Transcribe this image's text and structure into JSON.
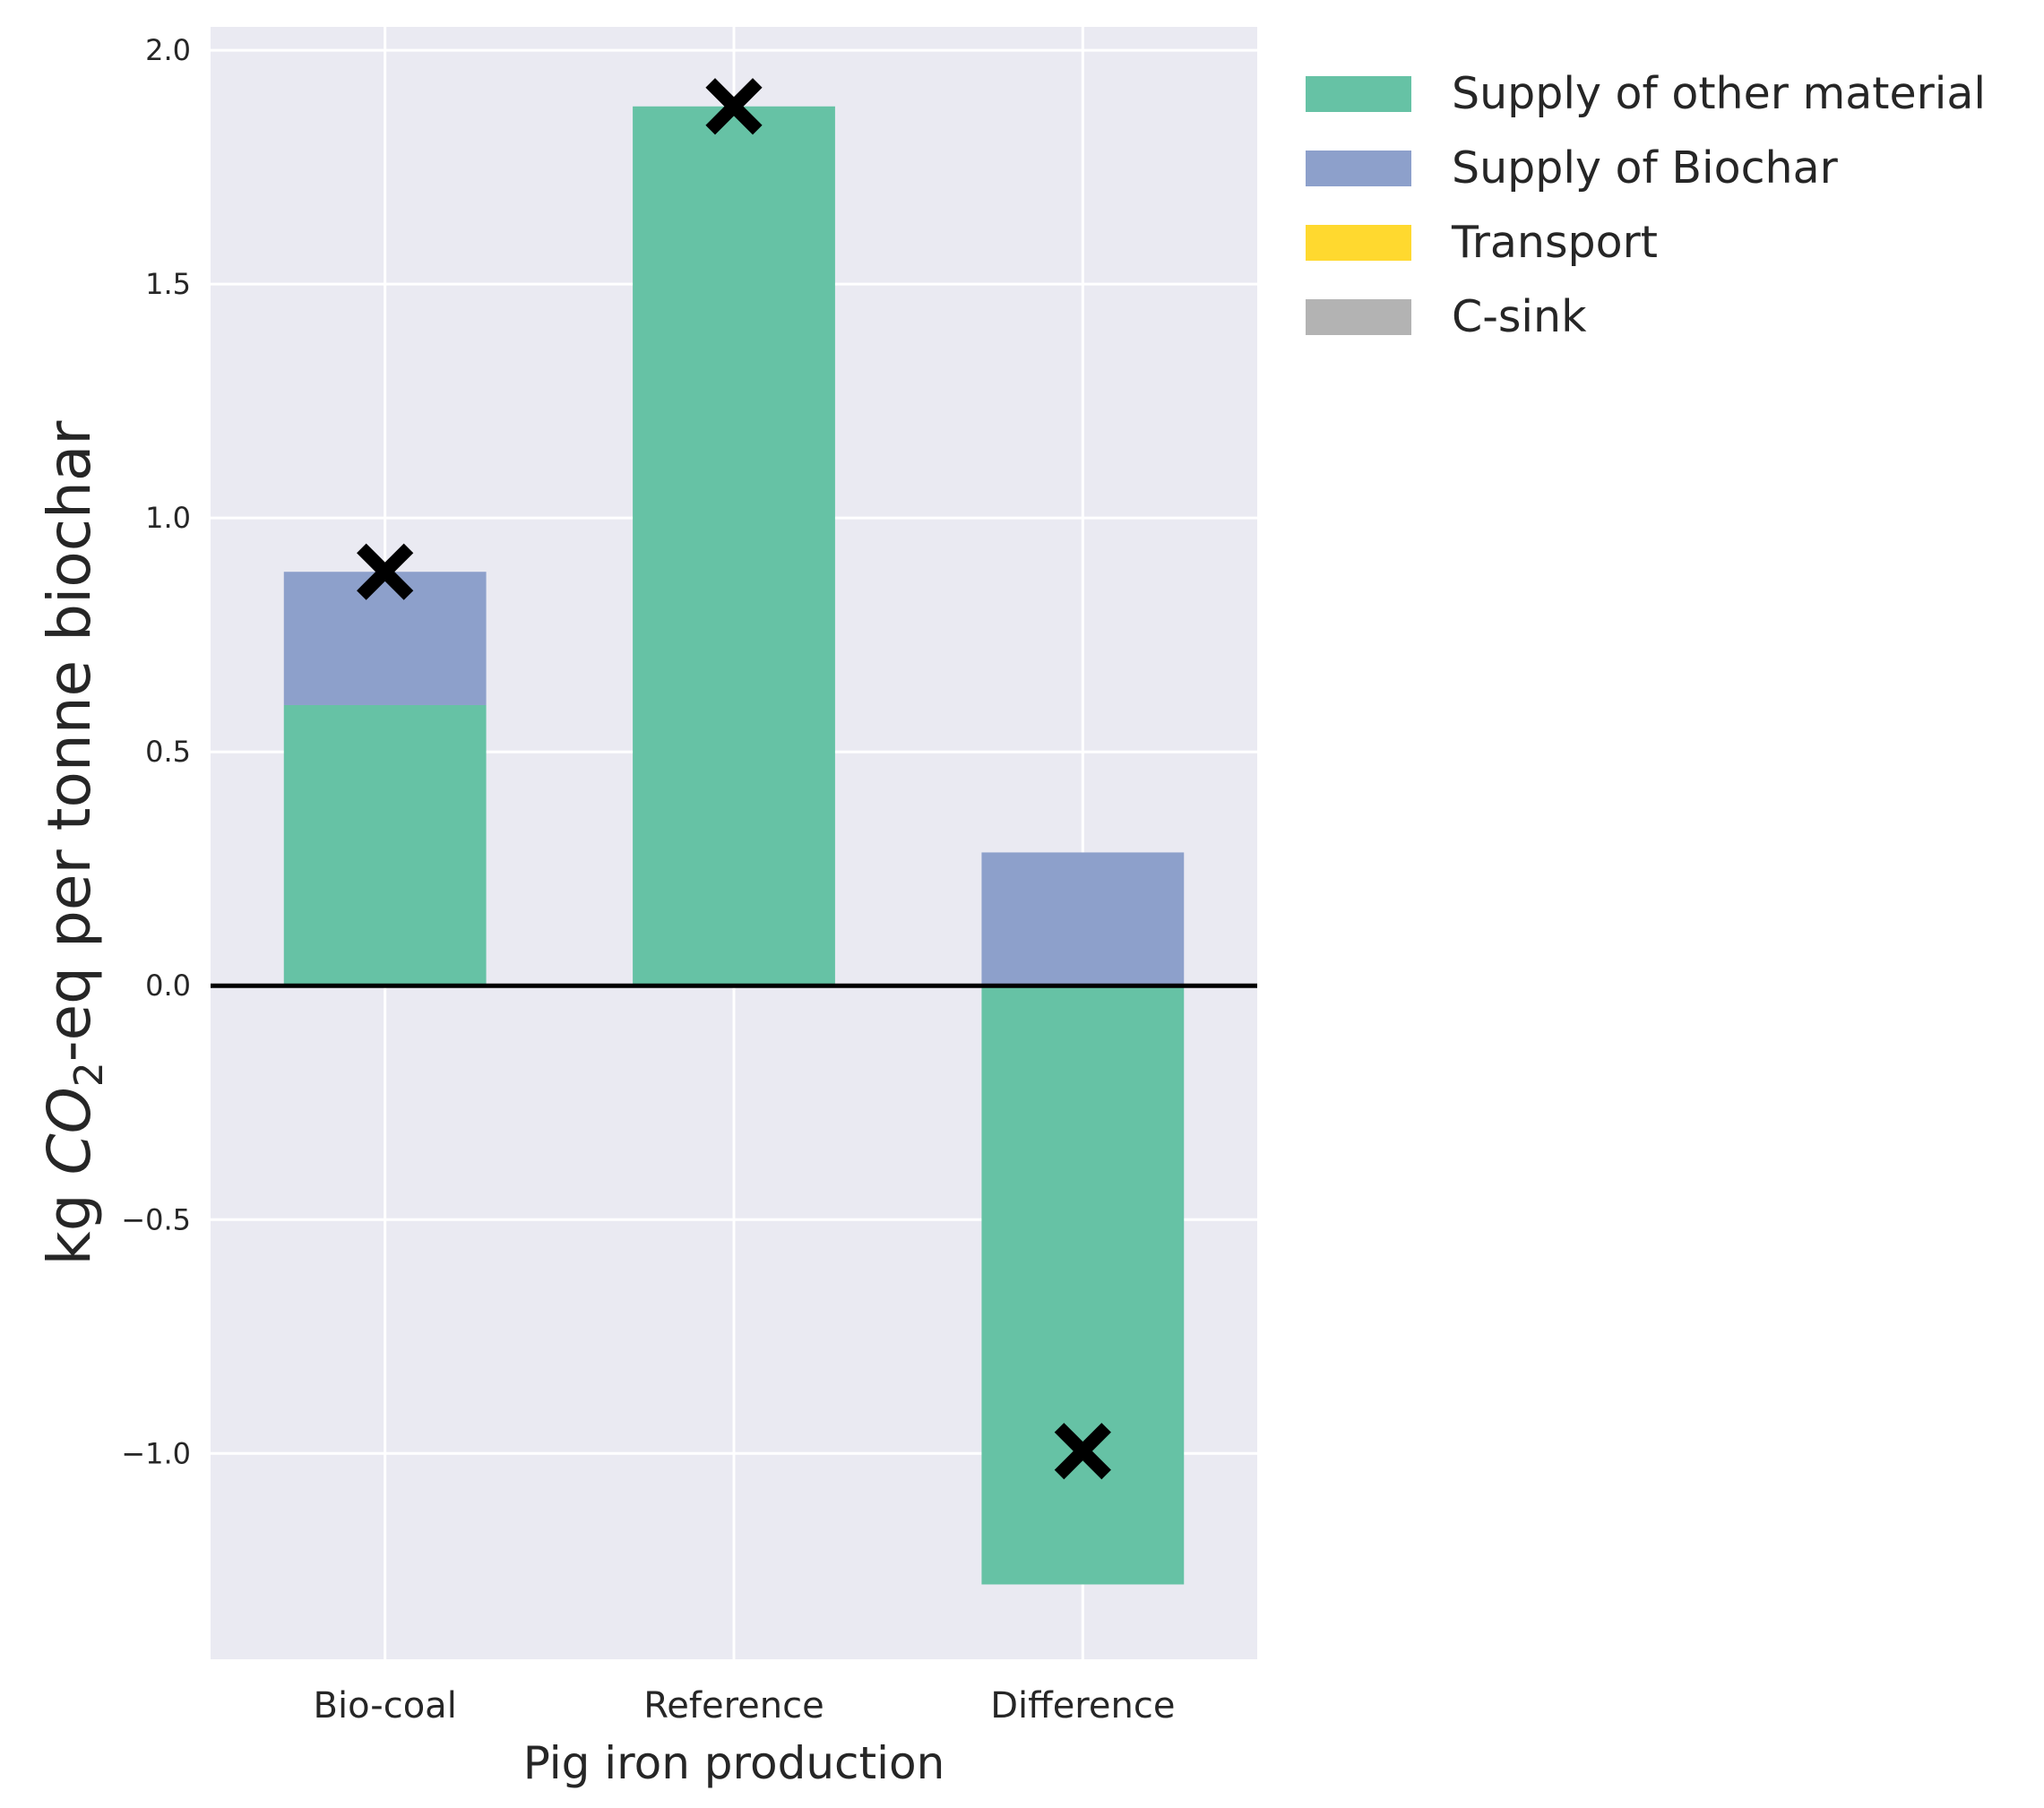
{
  "chart_data": {
    "type": "bar",
    "stacked": true,
    "categories": [
      "Bio-coal",
      "Reference",
      "Difference"
    ],
    "series": [
      {
        "name": "Supply of other material",
        "color": "#66c2a5",
        "values": [
          0.6,
          1.88,
          -1.28
        ]
      },
      {
        "name": "Supply of Biochar",
        "color": "#8da0cb",
        "values": [
          0.285,
          0.0,
          0.285
        ]
      },
      {
        "name": "Transport",
        "color": "#ffd92f",
        "values": [
          0.0,
          0.0,
          0.0
        ]
      },
      {
        "name": "C-sink",
        "color": "#b3b3b3",
        "values": [
          0.0,
          0.0,
          0.0
        ]
      }
    ],
    "totals_marker": {
      "symbol": "X",
      "color": "#000000",
      "values": [
        0.885,
        1.88,
        -0.995
      ]
    },
    "xlabel": "Pig iron production",
    "ylabel": {
      "prefix": "kg ",
      "co2": "CO",
      "sub": "2",
      "suffix": "-eq per tonne biochar"
    },
    "ylim": [
      -1.44,
      2.05
    ],
    "yticks": [
      -1.0,
      -0.5,
      0.0,
      0.5,
      1.0,
      1.5,
      2.0
    ],
    "ytick_labels": [
      "−1.0",
      "−0.5",
      "0.0",
      "0.5",
      "1.0",
      "1.5",
      "2.0"
    ],
    "zero_line": true,
    "grid": true,
    "background": "#eaeaf2",
    "legend_position": "outside-top-right"
  }
}
